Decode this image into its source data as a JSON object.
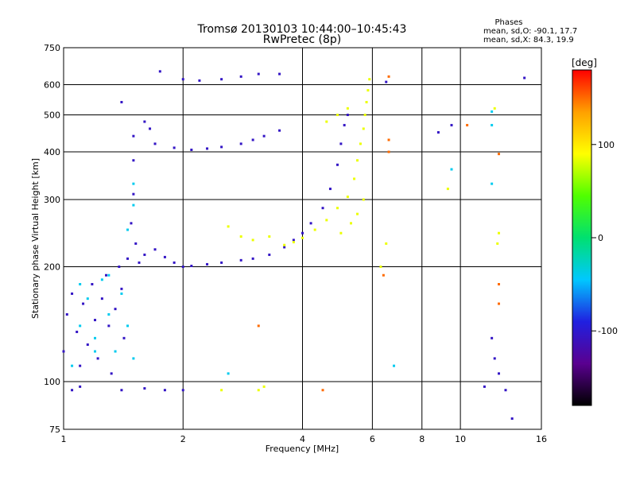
{
  "title_line1": "Tromsø 20130103 10:44:00–10:45:43",
  "title_line2": "RwPretec (8p)",
  "stats": {
    "heading": "Phases",
    "line1": "mean, sd,O: -90.1, 17.7",
    "line2": "mean, sd,X:  84.3, 19.9"
  },
  "colorbar": {
    "unit_label": "[deg]",
    "ticks": [
      {
        "label": "100",
        "value": 100
      },
      {
        "label": "0",
        "value": 0
      },
      {
        "label": "-100",
        "value": -100
      }
    ],
    "range": [
      -180,
      180
    ],
    "colors": [
      "#000000",
      "#5a0090",
      "#2020e0",
      "#00c8ff",
      "#00e070",
      "#50ff00",
      "#ffff00",
      "#ffa000",
      "#ff0000"
    ]
  },
  "chart_data": {
    "type": "scatter",
    "title": "Tromsø 20130103 10:44:00–10:45:43  RwPretec (8p)",
    "xlabel": "Frequency [MHz]",
    "ylabel": "Stationary phase Virtual Height [km]",
    "xscale": "log",
    "yscale": "log",
    "xlim": [
      1,
      16
    ],
    "ylim": [
      75,
      750
    ],
    "xticks": [
      1,
      2,
      4,
      6,
      8,
      10,
      16
    ],
    "yticks": [
      75,
      100,
      200,
      300,
      400,
      500,
      600,
      750
    ],
    "grid": true,
    "series": [
      {
        "color_phase": -105,
        "points": [
          [
            1.0,
            120
          ],
          [
            1.02,
            150
          ],
          [
            1.05,
            170
          ],
          [
            1.08,
            135
          ],
          [
            1.1,
            110
          ],
          [
            1.12,
            160
          ],
          [
            1.15,
            125
          ],
          [
            1.18,
            180
          ],
          [
            1.2,
            145
          ],
          [
            1.22,
            115
          ],
          [
            1.25,
            165
          ],
          [
            1.28,
            190
          ],
          [
            1.3,
            140
          ],
          [
            1.32,
            105
          ],
          [
            1.35,
            155
          ],
          [
            1.38,
            200
          ],
          [
            1.4,
            175
          ],
          [
            1.42,
            130
          ],
          [
            1.45,
            210
          ],
          [
            1.48,
            260
          ],
          [
            1.5,
            310
          ],
          [
            1.5,
            380
          ],
          [
            1.5,
            440
          ],
          [
            1.52,
            230
          ],
          [
            1.55,
            205
          ],
          [
            1.6,
            215
          ],
          [
            1.7,
            222
          ],
          [
            1.8,
            212
          ],
          [
            1.9,
            205
          ],
          [
            2.0,
            200
          ],
          [
            2.1,
            201
          ],
          [
            2.3,
            203
          ],
          [
            2.5,
            205
          ],
          [
            2.8,
            208
          ],
          [
            3.0,
            210
          ],
          [
            3.3,
            215
          ],
          [
            3.6,
            225
          ],
          [
            3.8,
            235
          ],
          [
            4.0,
            245
          ],
          [
            4.2,
            260
          ],
          [
            4.5,
            285
          ],
          [
            4.7,
            320
          ],
          [
            4.9,
            370
          ],
          [
            5.0,
            420
          ],
          [
            5.1,
            470
          ],
          [
            5.2,
            500
          ],
          [
            1.7,
            420
          ],
          [
            1.9,
            410
          ],
          [
            2.1,
            405
          ],
          [
            2.3,
            408
          ],
          [
            2.5,
            412
          ],
          [
            2.8,
            420
          ],
          [
            3.0,
            430
          ],
          [
            3.2,
            440
          ],
          [
            3.5,
            455
          ],
          [
            1.75,
            650
          ],
          [
            2.0,
            620
          ],
          [
            2.2,
            615
          ],
          [
            2.5,
            620
          ],
          [
            2.8,
            630
          ],
          [
            3.1,
            640
          ],
          [
            3.5,
            640
          ],
          [
            1.6,
            480
          ],
          [
            1.65,
            460
          ],
          [
            1.05,
            95
          ],
          [
            1.1,
            97
          ],
          [
            1.4,
            95
          ],
          [
            1.6,
            96
          ],
          [
            1.8,
            95
          ],
          [
            2.0,
            95
          ],
          [
            1.4,
            540
          ],
          [
            6.5,
            610
          ],
          [
            8.8,
            450
          ],
          [
            9.5,
            470
          ],
          [
            12.0,
            130
          ],
          [
            12.2,
            115
          ],
          [
            12.5,
            105
          ],
          [
            13.0,
            95
          ],
          [
            13.5,
            80
          ],
          [
            14.5,
            625
          ],
          [
            11.5,
            97
          ]
        ]
      },
      {
        "color_phase": -40,
        "points": [
          [
            1.05,
            110
          ],
          [
            1.1,
            140
          ],
          [
            1.15,
            165
          ],
          [
            1.2,
            130
          ],
          [
            1.25,
            185
          ],
          [
            1.3,
            150
          ],
          [
            1.35,
            120
          ],
          [
            1.4,
            170
          ],
          [
            1.45,
            250
          ],
          [
            1.5,
            290
          ],
          [
            1.5,
            330
          ],
          [
            1.1,
            180
          ],
          [
            1.2,
            120
          ],
          [
            1.3,
            190
          ],
          [
            1.45,
            140
          ],
          [
            1.5,
            115
          ],
          [
            2.6,
            105
          ],
          [
            6.8,
            110
          ],
          [
            9.5,
            360
          ],
          [
            12.0,
            470
          ],
          [
            12.0,
            510
          ],
          [
            12.0,
            330
          ]
        ]
      },
      {
        "color_phase": 85,
        "points": [
          [
            2.6,
            255
          ],
          [
            2.8,
            240
          ],
          [
            3.0,
            235
          ],
          [
            3.3,
            240
          ],
          [
            3.6,
            228
          ],
          [
            3.8,
            232
          ],
          [
            4.0,
            238
          ],
          [
            4.3,
            250
          ],
          [
            4.6,
            265
          ],
          [
            4.9,
            285
          ],
          [
            5.2,
            305
          ],
          [
            5.4,
            340
          ],
          [
            5.5,
            380
          ],
          [
            5.6,
            420
          ],
          [
            5.7,
            460
          ],
          [
            5.75,
            500
          ],
          [
            5.8,
            540
          ],
          [
            5.85,
            580
          ],
          [
            5.9,
            620
          ],
          [
            5.0,
            245
          ],
          [
            5.3,
            260
          ],
          [
            5.5,
            275
          ],
          [
            5.7,
            300
          ],
          [
            4.6,
            480
          ],
          [
            4.9,
            500
          ],
          [
            5.2,
            520
          ],
          [
            3.1,
            95
          ],
          [
            3.2,
            97
          ],
          [
            2.5,
            95
          ],
          [
            6.3,
            200
          ],
          [
            6.5,
            230
          ],
          [
            12.2,
            520
          ],
          [
            12.4,
            230
          ],
          [
            12.5,
            245
          ],
          [
            9.3,
            320
          ]
        ]
      },
      {
        "color_phase": 150,
        "points": [
          [
            6.6,
            630
          ],
          [
            6.6,
            430
          ],
          [
            6.6,
            400
          ],
          [
            6.4,
            190
          ],
          [
            3.1,
            140
          ],
          [
            4.5,
            95
          ],
          [
            12.5,
            160
          ],
          [
            12.5,
            180
          ],
          [
            12.5,
            395
          ],
          [
            10.4,
            470
          ]
        ]
      }
    ]
  }
}
